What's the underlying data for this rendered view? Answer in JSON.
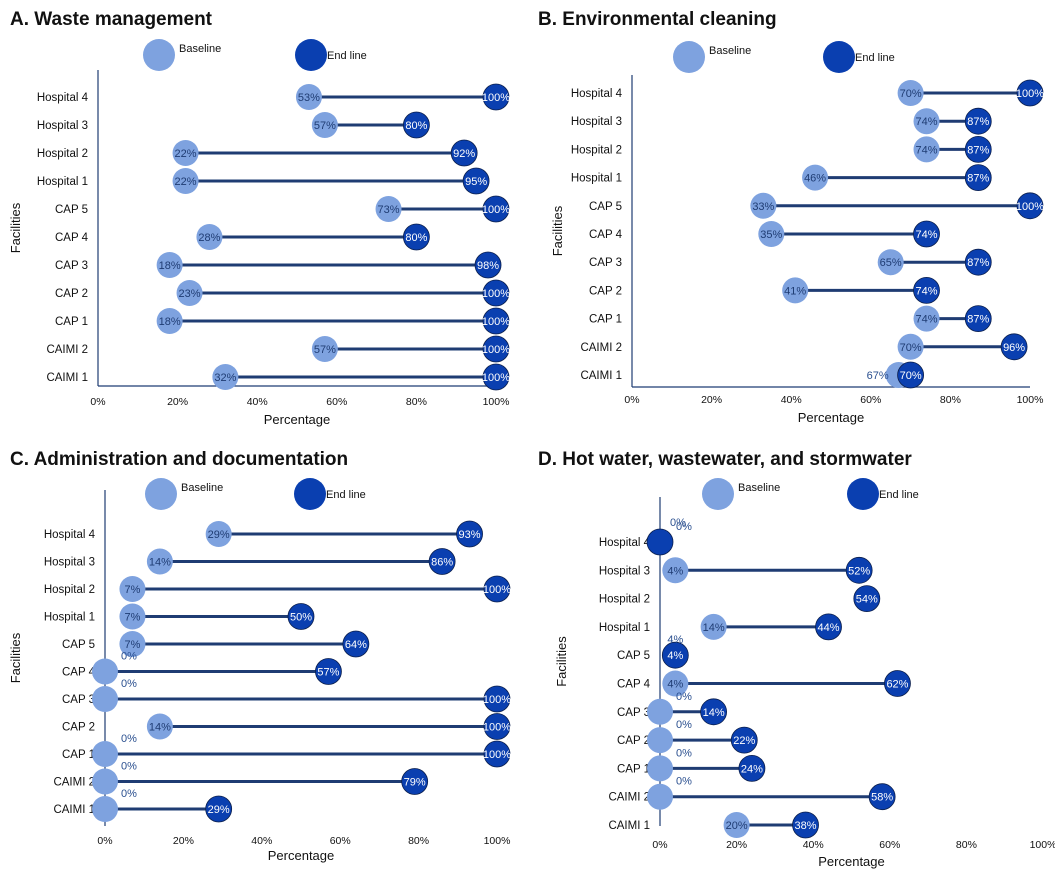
{
  "colors": {
    "baseline": "#7ea2df",
    "endline": "#0a3fb0",
    "connector": "#1f3c73",
    "axis": "#1f3c73"
  },
  "legend": {
    "baseline": "Baseline",
    "endline": "End line"
  },
  "chart_data": [
    {
      "type": "dumbbell",
      "title": "A. Waste management",
      "xlabel": "Percentage",
      "ylabel": "Facilities",
      "xlim": [
        0,
        100
      ],
      "xticks": [
        "0%",
        "20%",
        "40%",
        "60%",
        "80%",
        "100%"
      ],
      "categories": [
        "Hospital 4",
        "Hospital 3",
        "Hospital 2",
        "Hospital 1",
        "CAP 5",
        "CAP 4",
        "CAP 3",
        "CAP 2",
        "CAP 1",
        "CAIMI 2",
        "CAIMI 1"
      ],
      "series": [
        {
          "name": "Baseline",
          "values": [
            53,
            57,
            22,
            22,
            73,
            28,
            18,
            23,
            18,
            57,
            32
          ]
        },
        {
          "name": "End line",
          "values": [
            100,
            80,
            92,
            95,
            100,
            80,
            98,
            100,
            100,
            100,
            100
          ]
        }
      ]
    },
    {
      "type": "dumbbell",
      "title": "B. Environmental cleaning",
      "xlabel": "Percentage",
      "ylabel": "Facilities",
      "xlim": [
        0,
        100
      ],
      "xticks": [
        "0%",
        "20%",
        "40%",
        "60%",
        "80%",
        "100%"
      ],
      "categories": [
        "Hospital 4",
        "Hospital 3",
        "Hospital 2",
        "Hospital 1",
        "CAP 5",
        "CAP 4",
        "CAP 3",
        "CAP 2",
        "CAP 1",
        "CAIMI 2",
        "CAIMI 1"
      ],
      "series": [
        {
          "name": "Baseline",
          "values": [
            70,
            74,
            74,
            46,
            33,
            35,
            65,
            41,
            74,
            70,
            67
          ]
        },
        {
          "name": "End line",
          "values": [
            100,
            87,
            87,
            87,
            100,
            74,
            87,
            74,
            87,
            96,
            70
          ]
        }
      ]
    },
    {
      "type": "dumbbell",
      "title": "C. Administration and documentation",
      "xlabel": "Percentage",
      "ylabel": "Facilities",
      "xlim": [
        0,
        100
      ],
      "xticks": [
        "0%",
        "20%",
        "40%",
        "60%",
        "80%",
        "100%"
      ],
      "categories": [
        "Hospital 4",
        "Hospital 3",
        "Hospital 2",
        "Hospital 1",
        "CAP 5",
        "CAP 4",
        "CAP 3",
        "CAP 2",
        "CAP 1",
        "CAIMI 2",
        "CAIMI 1"
      ],
      "series": [
        {
          "name": "Baseline",
          "values": [
            29,
            14,
            7,
            7,
            7,
            0,
            0,
            14,
            0,
            0,
            0
          ]
        },
        {
          "name": "End line",
          "values": [
            93,
            86,
            100,
            50,
            64,
            57,
            100,
            100,
            100,
            79,
            29
          ]
        }
      ]
    },
    {
      "type": "dumbbell",
      "title": "D. Hot water, wastewater, and stormwater",
      "xlabel": "Percentage",
      "ylabel": "Facilities",
      "xlim": [
        0,
        100
      ],
      "xticks": [
        "0%",
        "20%",
        "40%",
        "60%",
        "80%",
        "100%"
      ],
      "categories": [
        "Hospital 4",
        "Hospital 3",
        "Hospital 2",
        "Hospital 1",
        "CAP 5",
        "CAP 4",
        "CAP 3",
        "CAP 2",
        "CAP 1",
        "CAIMI 2",
        "CAIMI 1"
      ],
      "series": [
        {
          "name": "Baseline",
          "values": [
            0,
            4,
            null,
            14,
            4,
            4,
            0,
            0,
            0,
            0,
            20
          ]
        },
        {
          "name": "End line",
          "values": [
            0,
            52,
            54,
            44,
            4,
            62,
            14,
            22,
            24,
            58,
            38
          ]
        }
      ]
    }
  ]
}
